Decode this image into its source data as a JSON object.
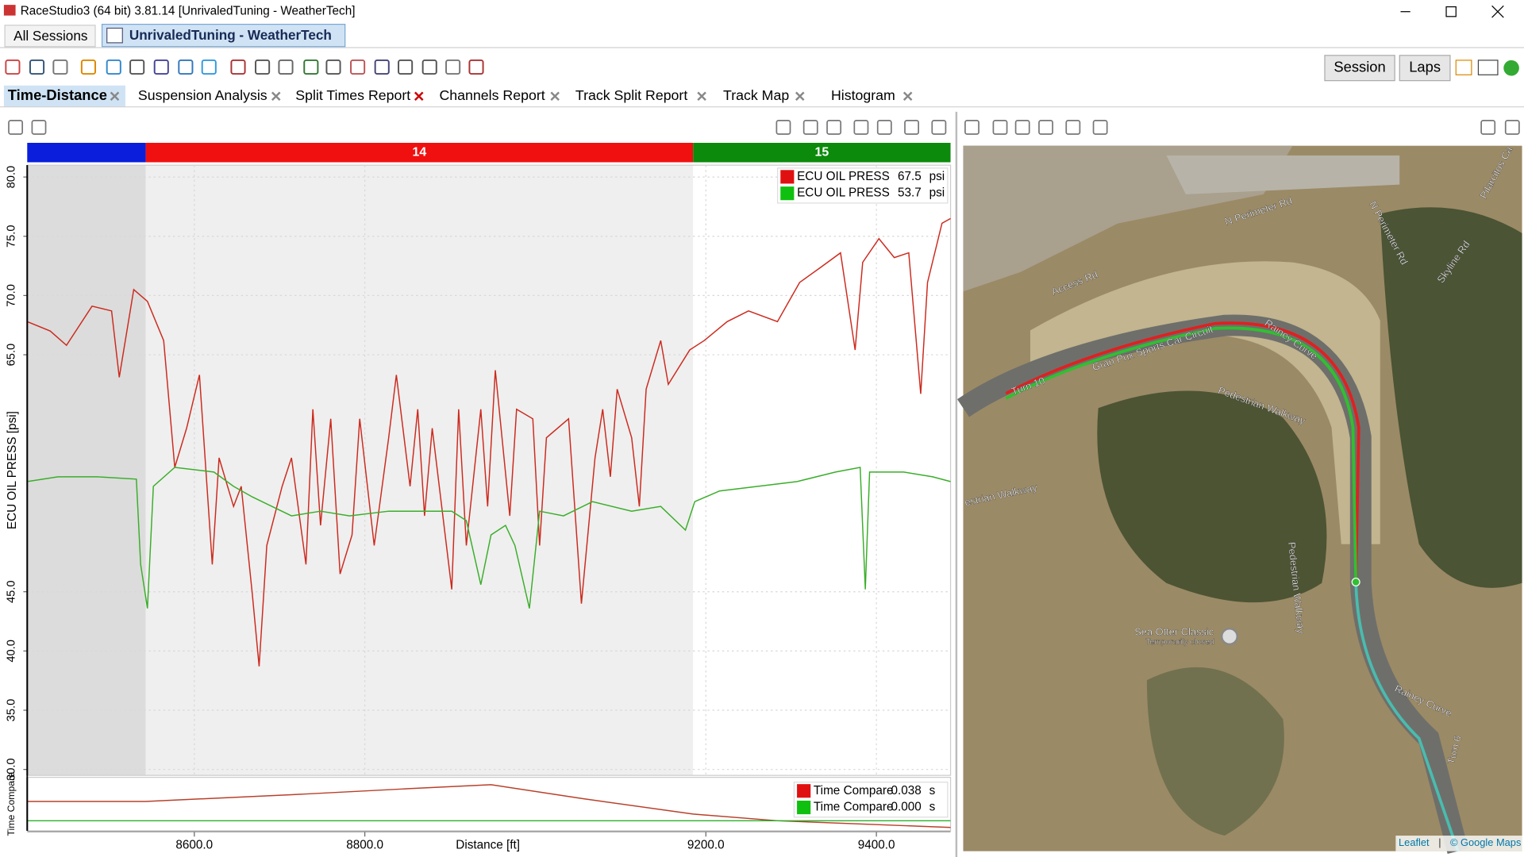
{
  "window": {
    "title": "RaceStudio3 (64 bit) 3.81.14 [UnrivaledTuning - WeatherTech]"
  },
  "session_tabs": [
    "All Sessions",
    "UnrivaledTuning - WeatherTech"
  ],
  "buttons": [
    "Session",
    "Laps"
  ],
  "report_tabs": [
    "Time-Distance",
    "Suspension Analysis",
    "Split Times Report",
    "Channels Report",
    "Track Split Report",
    "Track Map",
    "Histogram"
  ],
  "chart_data": [
    {
      "type": "line",
      "ylabel": "ECU OIL PRESS [psi]",
      "xlabel": "Distance [ft]",
      "xlim": [
        8404,
        9487
      ],
      "ylim": [
        29.5,
        81
      ],
      "xticks": [
        {
          "value": 8600,
          "label": "8600.0"
        },
        {
          "value": 8800,
          "label": "8800.0"
        },
        {
          "value": 9200,
          "label": "9200.0"
        },
        {
          "value": 9400,
          "label": "9400.0"
        }
      ],
      "yticks": [
        {
          "value": 30,
          "label": "30.0"
        },
        {
          "value": 35,
          "label": "35.0"
        },
        {
          "value": 40,
          "label": "40.0"
        },
        {
          "value": 45,
          "label": "45.0"
        },
        {
          "value": 65,
          "label": "65.0"
        },
        {
          "value": 70,
          "label": "70.0"
        },
        {
          "value": 75,
          "label": "75.0"
        },
        {
          "value": 80,
          "label": "80.0"
        }
      ],
      "grid": true,
      "laps": [
        {
          "label": null,
          "start": 8404,
          "end": 8543,
          "color": "#0a1edc",
          "shade": "#dcdcdc"
        },
        {
          "label": "14",
          "start": 8543,
          "end": 9185,
          "color": "#f01010",
          "shade": "#efefef"
        },
        {
          "label": "15",
          "start": 9185,
          "end": 9487,
          "color": "#0c8a0c",
          "shade": "#ffffff"
        }
      ],
      "series": [
        {
          "name": "ECU OIL PRESS",
          "color": "#cc2a1e",
          "legend_color": "#e01010",
          "readout": "67.5",
          "unit": "psi",
          "x": [
            8404,
            8431,
            8450,
            8480,
            8503,
            8512,
            8529,
            8545,
            8564,
            8577,
            8591,
            8606,
            8621,
            8629,
            8646,
            8655,
            8668,
            8676,
            8685,
            8703,
            8714,
            8731,
            8739,
            8748,
            8760,
            8771,
            8785,
            8794,
            8811,
            8828,
            8837,
            8853,
            8862,
            8870,
            8879,
            8902,
            8910,
            8919,
            8936,
            8944,
            8953,
            8970,
            8978,
            8997,
            9005,
            9013,
            9039,
            9054,
            9070,
            9079,
            9088,
            9096,
            9113,
            9122,
            9130,
            9147,
            9156,
            9181,
            9198,
            9225,
            9250,
            9284,
            9310,
            9335,
            9358,
            9375,
            9384,
            9403,
            9421,
            9438,
            9452,
            9460,
            9477,
            9487
          ],
          "values": [
            67.8,
            67.0,
            65.8,
            69.1,
            68.7,
            63.1,
            70.5,
            69.5,
            66.2,
            55.5,
            58.8,
            63.3,
            47.3,
            56.3,
            52.2,
            53.9,
            44.8,
            38.7,
            48.9,
            53.9,
            56.3,
            47.3,
            60.4,
            50.6,
            59.6,
            46.5,
            49.8,
            59.6,
            48.9,
            58.0,
            63.3,
            53.9,
            60.4,
            51.4,
            58.8,
            45.2,
            60.4,
            48.9,
            60.4,
            52.2,
            63.7,
            51.4,
            60.4,
            59.6,
            48.9,
            58.0,
            59.6,
            44.0,
            56.3,
            60.4,
            54.7,
            62.1,
            58.0,
            52.2,
            62.1,
            66.2,
            62.5,
            65.4,
            66.2,
            67.8,
            68.7,
            67.8,
            71.1,
            72.4,
            73.6,
            65.4,
            72.8,
            74.8,
            73.2,
            73.6,
            61.7,
            71.1,
            76.1,
            76.5
          ]
        },
        {
          "name": "ECU OIL PRESS",
          "color": "#3aae2a",
          "legend_color": "#10c010",
          "readout": "53.7",
          "unit": "psi",
          "x": [
            8404,
            8440,
            8486,
            8532,
            8537,
            8545,
            8552,
            8577,
            8623,
            8646,
            8668,
            8691,
            8714,
            8748,
            8782,
            8828,
            8873,
            8902,
            8919,
            8936,
            8948,
            8965,
            8976,
            8993,
            9005,
            9033,
            9067,
            9113,
            9147,
            9176,
            9187,
            9216,
            9261,
            9307,
            9352,
            9381,
            9387,
            9392,
            9432,
            9466,
            9487
          ],
          "values": [
            54.3,
            54.7,
            54.7,
            54.5,
            47.3,
            43.6,
            53.9,
            55.5,
            55.1,
            53.9,
            53.0,
            52.2,
            51.4,
            51.8,
            51.4,
            51.8,
            51.8,
            51.8,
            51.0,
            45.6,
            49.8,
            50.6,
            48.9,
            43.6,
            51.8,
            51.4,
            52.6,
            51.8,
            52.2,
            50.2,
            52.6,
            53.5,
            53.9,
            54.3,
            55.1,
            55.5,
            45.2,
            55.1,
            55.1,
            54.7,
            54.3
          ]
        }
      ]
    },
    {
      "type": "line",
      "ylabel": "Time Compare",
      "xlim": [
        8404,
        9487
      ],
      "ylim": [
        -0.015,
        0.065
      ],
      "series": [
        {
          "name": "Time Compare",
          "color": "#b8402a",
          "legend_color": "#e01010",
          "readout": "0.038",
          "unit": "s",
          "x": [
            8404,
            8543,
            8714,
            8851,
            8948,
            9056,
            9185,
            9284,
            9487
          ],
          "values": [
            0.029,
            0.029,
            0.039,
            0.048,
            0.054,
            0.033,
            0.01,
            0.0,
            -0.01
          ]
        },
        {
          "name": "Time Compare",
          "color": "#2ab02a",
          "legend_color": "#10c010",
          "readout": "0.000",
          "unit": "s",
          "x": [
            8404,
            9487
          ],
          "values": [
            0.0,
            0.0
          ]
        }
      ]
    }
  ],
  "map": {
    "labels": [
      "N Perimeter Rd",
      "N Perimeter Rd",
      "Access Rd",
      "Gran Prix Sports Car Circuit",
      "Rainey Curve",
      "Turn 10",
      "Pedestrian Walkway",
      "Pedestrian Walkway",
      "estrian Walkway",
      "Skyline Rd",
      "Pilarcitos Ca",
      "Sea Otter Classic",
      "Temporarily closed",
      "Rainey Curve",
      "Turn 6"
    ],
    "attribution": [
      "Leaflet",
      "© Google Maps"
    ]
  }
}
